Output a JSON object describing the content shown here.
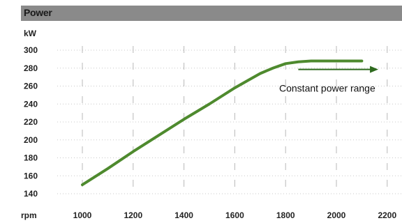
{
  "chart_data": {
    "type": "line",
    "title": "Power",
    "ylabel": "kW",
    "xlabel": "rpm",
    "xlim": [
      900,
      2250
    ],
    "ylim": [
      140,
      300
    ],
    "xticks": [
      1000,
      1200,
      1400,
      1600,
      1800,
      2000,
      2200
    ],
    "yticks": [
      140,
      160,
      180,
      200,
      220,
      240,
      260,
      280,
      300
    ],
    "grid": "vertical-dashed",
    "series": [
      {
        "color": "#4e8a2e",
        "x": [
          1000,
          1100,
          1200,
          1300,
          1400,
          1500,
          1600,
          1650,
          1700,
          1750,
          1800,
          1850,
          1900,
          1950,
          2000,
          2050,
          2100
        ],
        "y": [
          150,
          168,
          187,
          205,
          223,
          240,
          258,
          266,
          274,
          280,
          285,
          287,
          288,
          288,
          288,
          288,
          288
        ]
      }
    ],
    "annotation": {
      "text": "Constant power range",
      "arrow_from_x": 1850,
      "arrow_to_x": 2165,
      "arrow_y": 277,
      "color": "#2e6a1e"
    }
  }
}
